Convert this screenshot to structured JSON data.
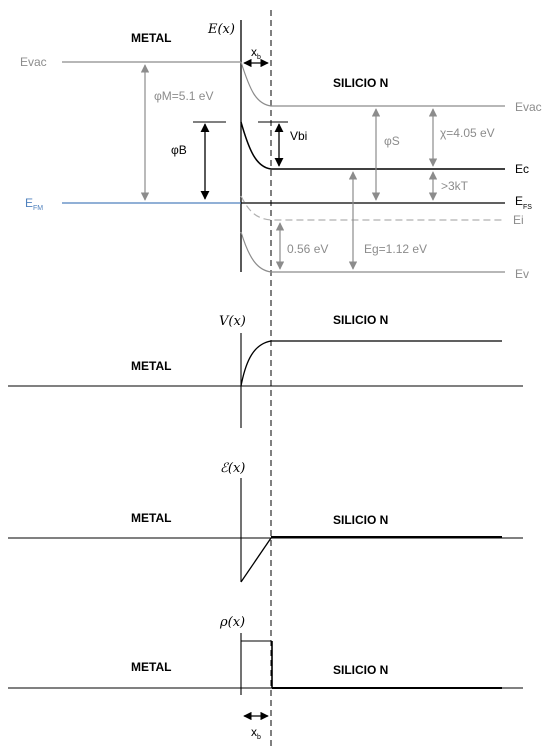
{
  "colors": {
    "black_line": "#000000",
    "gray_line": "#8c8c8c",
    "light_gray_line": "#b0b0b0",
    "fermi_metal_line": "#4f81bd"
  },
  "energy_diagram": {
    "y_axis_label": "E(x)",
    "metal_label": "METAL",
    "semiconductor_label": "SILICIO N",
    "depletion_width_label": "x",
    "depletion_width_sub": "b",
    "evac_left": "Evac",
    "evac_right": "Evac",
    "fermi_metal": "E",
    "fermi_metal_sub": "FM",
    "fermi_semi": "E",
    "fermi_semi_sub": "FS",
    "ec": "Ec",
    "ei": "Ei",
    "ev": "Ev",
    "phi_m": "φM=5.1 eV",
    "phi_b": "φB",
    "vbi": "Vbi",
    "phi_s": "φS",
    "chi": "χ=4.05 eV",
    "ec_minus_ef": ">3kT",
    "ei_minus_ev": "0.56 eV",
    "eg": "Eg=1.12 eV"
  },
  "potential_plot": {
    "y_axis_label": "V(x)",
    "metal_label": "METAL",
    "semiconductor_label": "SILICIO N"
  },
  "field_plot": {
    "y_axis_label": "ℰ(x)",
    "metal_label": "METAL",
    "semiconductor_label": "SILICIO N"
  },
  "charge_plot": {
    "y_axis_label": "ρ(x)",
    "metal_label": "METAL",
    "semiconductor_label": "SILICIO N",
    "depletion_width_label": "x",
    "depletion_width_sub": "b"
  }
}
